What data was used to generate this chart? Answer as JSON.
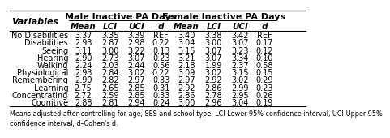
{
  "title_male": "Male Inactive PA Days",
  "title_female": "Female Inactive PA Days",
  "col_headers": [
    "Mean",
    "LCI",
    "UCI",
    "d",
    "Mean",
    "LCI",
    "UCI",
    "d"
  ],
  "row_label": "Variables",
  "rows": [
    [
      "No Disabilities",
      "3.37",
      "3.35",
      "3.39",
      "REF",
      "3.40",
      "3.38",
      "3.42",
      "REF"
    ],
    [
      "Disabilities",
      "2.93",
      "2.87",
      "2.98",
      "0.22",
      "3.04",
      "3.00",
      "3.07",
      "0.17"
    ],
    [
      "Seeing",
      "3.11",
      "3.00",
      "3.22",
      "0.13",
      "3.15",
      "3.07",
      "3.23",
      "0.12"
    ],
    [
      "Hearing",
      "2.90",
      "2.73",
      "3.07",
      "0.23",
      "3.21",
      "3.07",
      "3.34",
      "0.10"
    ],
    [
      "Walking",
      "2.24",
      "2.03",
      "2.44",
      "0.56",
      "2.18",
      "1.99",
      "2.37",
      "0.58"
    ],
    [
      "Physiological",
      "2.93",
      "2.84",
      "3.02",
      "0.22",
      "3.09",
      "3.02",
      "3.15",
      "0.15"
    ],
    [
      "Remembering",
      "2.90",
      "2.82",
      "2.97",
      "0.33",
      "2.97",
      "2.92",
      "3.02",
      "0.29"
    ],
    [
      "Learning",
      "2.75",
      "2.65",
      "2.85",
      "0.31",
      "2.92",
      "2.86",
      "2.99",
      "0.23"
    ],
    [
      "Concentrating",
      "2.72",
      "2.59",
      "2.85",
      "0.33",
      "2.86",
      "2.78",
      "2.95",
      "0.26"
    ],
    [
      "Cognitive",
      "2.88",
      "2.81",
      "2.94",
      "0.24",
      "3.00",
      "2.96",
      "3.04",
      "0.19"
    ]
  ],
  "footnote1": "Means adjusted after controlling for age, SES and school type. LCI-Lower 95% confidence interval, UCI-Upper 95%",
  "footnote2": "confidence interval, d–Cohen's d.",
  "bg_color": "#ffffff",
  "line_color": "#000000",
  "font_size": 7.0,
  "header_font_size": 7.5,
  "group_font_size": 8.0,
  "footnote_font_size": 5.8
}
